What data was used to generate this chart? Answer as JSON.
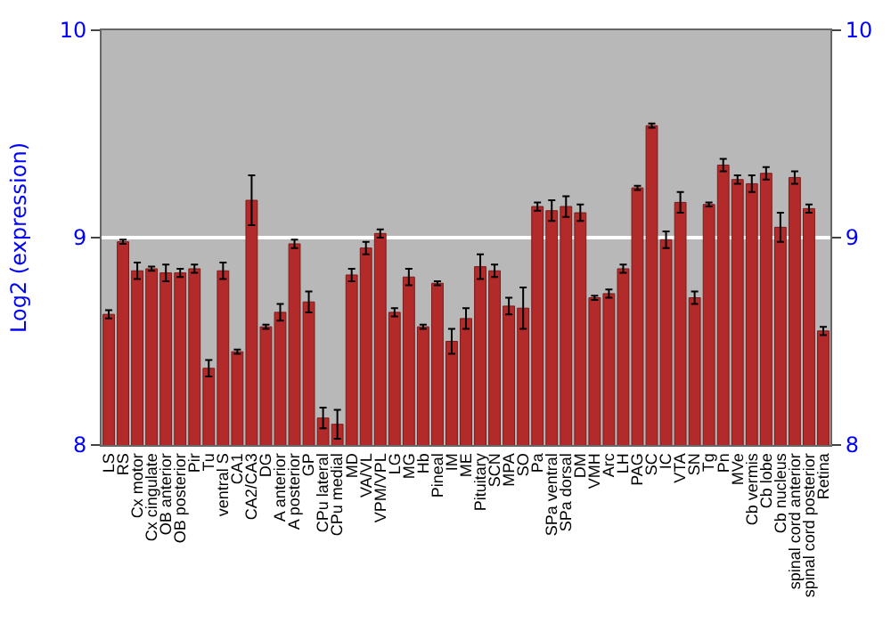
{
  "chart_data": {
    "type": "bar",
    "ylabel": "Log2 (expression)",
    "categories": [
      "LS",
      "RS",
      "Cx motor",
      "Cx cingulate",
      "OB anterior",
      "OB posterior",
      "Pir",
      "Tu",
      "ventral S",
      "CA1",
      "CA2/CA3",
      "DG",
      "A anterior",
      "A posterior",
      "GP",
      "CPu lateral",
      "CPu medial",
      "MD",
      "VA/VL",
      "VPM/VPL",
      "LG",
      "MG",
      "Hb",
      "Pineal",
      "IM",
      "ME",
      "Pituitary",
      "SCN",
      "MPA",
      "SO",
      "Pa",
      "SPa ventral",
      "SPa dorsal",
      "DM",
      "VMH",
      "Arc",
      "LH",
      "PAG",
      "SC",
      "IC",
      "VTA",
      "SN",
      "Tg",
      "Pn",
      "MVe",
      "Cb vermis",
      "Cb lobe",
      "Cb nucleus",
      "spinal cord anterior",
      "spinal cord posterior",
      "Retina"
    ],
    "values": [
      8.63,
      8.98,
      8.84,
      8.85,
      8.83,
      8.83,
      8.85,
      8.37,
      8.84,
      8.45,
      9.18,
      8.57,
      8.64,
      8.97,
      8.69,
      8.13,
      8.1,
      8.82,
      8.95,
      9.02,
      8.64,
      8.81,
      8.57,
      8.78,
      8.5,
      8.61,
      8.86,
      8.84,
      8.67,
      8.66,
      9.15,
      9.13,
      9.15,
      9.12,
      8.71,
      8.73,
      8.85,
      9.24,
      9.54,
      8.99,
      9.17,
      8.71,
      9.16,
      9.35,
      9.28,
      9.26,
      9.31,
      9.05,
      9.29,
      9.14,
      8.55
    ],
    "errors": [
      0.02,
      0.01,
      0.04,
      0.01,
      0.04,
      0.02,
      0.02,
      0.04,
      0.04,
      0.01,
      0.12,
      0.01,
      0.04,
      0.02,
      0.05,
      0.05,
      0.07,
      0.03,
      0.03,
      0.02,
      0.02,
      0.04,
      0.01,
      0.01,
      0.06,
      0.05,
      0.06,
      0.03,
      0.04,
      0.1,
      0.02,
      0.05,
      0.05,
      0.04,
      0.01,
      0.02,
      0.02,
      0.01,
      0.01,
      0.04,
      0.05,
      0.03,
      0.01,
      0.03,
      0.02,
      0.04,
      0.03,
      0.07,
      0.03,
      0.02,
      0.02
    ],
    "color": "#b22a2a",
    "ylim": [
      8,
      10
    ],
    "yticks": [
      8,
      9,
      10
    ],
    "y2lim": [
      8,
      10
    ],
    "y2ticks": [
      8,
      9,
      10
    ],
    "grid": "y"
  }
}
